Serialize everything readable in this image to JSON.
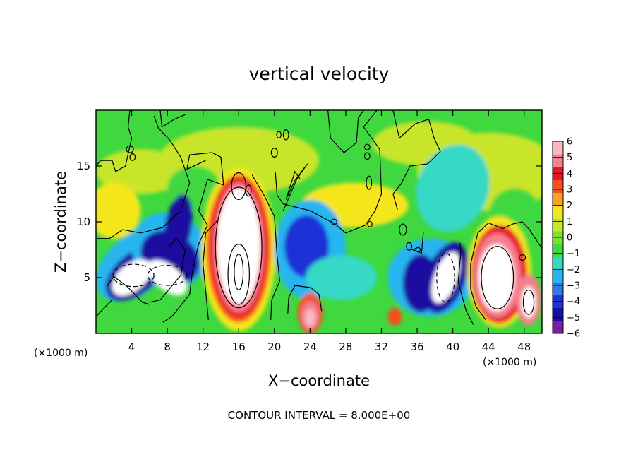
{
  "chart_data": {
    "type": "heatmap",
    "title": "vertical velocity",
    "xlabel": "X−coordinate",
    "ylabel": "Z−coordinate",
    "x_unit_label": "(×1000 m)",
    "x_unit_label_right": "(×1000 m)",
    "xlim": [
      0,
      50
    ],
    "ylim": [
      0,
      20
    ],
    "x_ticks": [
      4,
      8,
      12,
      16,
      20,
      24,
      28,
      32,
      36,
      40,
      44,
      48
    ],
    "y_ticks": [
      5,
      10,
      15
    ],
    "colorbar": {
      "ticks": [
        "6",
        "5",
        "4",
        "3",
        "2",
        "1",
        "0",
        "−1",
        "−2",
        "−3",
        "−4",
        "−5",
        "−6"
      ],
      "range": [
        -6,
        6
      ],
      "colors": [
        "#7b1fa2",
        "#1a0fa0",
        "#1f33d6",
        "#2f79e6",
        "#27b5f0",
        "#34d9c6",
        "#3fd83f",
        "#7be02e",
        "#c9e52a",
        "#f5e61c",
        "#f9a321",
        "#f4501e",
        "#e8142a",
        "#f47f8e",
        "#f9b9c0"
      ]
    },
    "contour_interval_label": "CONTOUR INTERVAL = 8.000E+00",
    "features": [
      {
        "name": "downdraft",
        "x": 4.5,
        "z": 5.3,
        "peak": -6
      },
      {
        "name": "downdraft",
        "x": 8.0,
        "z": 5.2,
        "peak": -6
      },
      {
        "name": "updraft",
        "x": 16.0,
        "z": 6.5,
        "peak": 6
      },
      {
        "name": "downdraft",
        "x": 24.0,
        "z": 8.0,
        "peak": -5
      },
      {
        "name": "updraft",
        "x": 24.0,
        "z": 1.5,
        "peak": 5
      },
      {
        "name": "updraft",
        "x": 33.5,
        "z": 1.5,
        "peak": 3
      },
      {
        "name": "downdraft",
        "x": 36.5,
        "z": 5.0,
        "peak": -5
      },
      {
        "name": "downdraft",
        "x": 39.0,
        "z": 5.0,
        "peak": -6
      },
      {
        "name": "updraft",
        "x": 45.0,
        "z": 5.0,
        "peak": 6
      },
      {
        "name": "updraft",
        "x": 48.5,
        "z": 3.0,
        "peak": 6
      }
    ]
  }
}
